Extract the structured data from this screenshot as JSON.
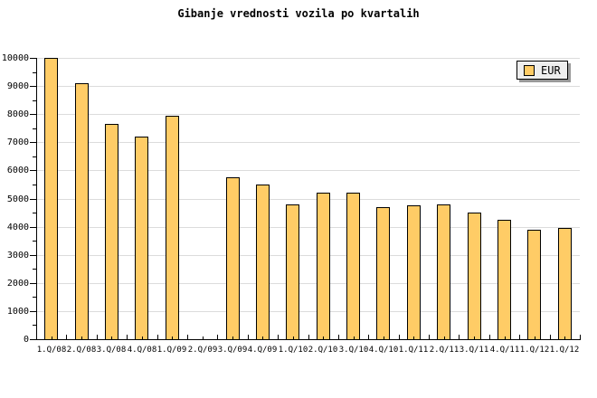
{
  "title": "Gibanje vrednosti vozila po kvartalih",
  "legend": {
    "label": "EUR"
  },
  "colors": {
    "background": "#FFFFFF",
    "bar_fill": "#FFCC66",
    "bar_border": "#000000",
    "grid": "#DCDCDC",
    "axis": "#000000",
    "text": "#000000",
    "legend_bg": "#EEEEEE",
    "legend_shadow": "#999999"
  },
  "chart_data": {
    "type": "bar",
    "title": "Gibanje vrednosti vozila po kvartalih",
    "xlabel": "",
    "ylabel": "",
    "categories": [
      "1.Q/08",
      "2.Q/08",
      "3.Q/08",
      "4.Q/08",
      "1.Q/09",
      "2.Q/09",
      "3.Q/09",
      "4.Q/09",
      "1.Q/10",
      "2.Q/10",
      "3.Q/10",
      "4.Q/10",
      "1.Q/11",
      "2.Q/11",
      "3.Q/11",
      "4.Q/11",
      "1.Q/12",
      "1.Q/12"
    ],
    "series": [
      {
        "name": "EUR",
        "values": [
          10000,
          9100,
          7650,
          7200,
          7950,
          null,
          5750,
          5500,
          4800,
          5200,
          5200,
          4700,
          4750,
          4800,
          4500,
          4250,
          3900,
          3950
        ]
      }
    ],
    "ylim": [
      0,
      10000
    ],
    "y_major_step": 1000,
    "y_minor_step": 500,
    "grid": "horizontal-major",
    "legend_position": "top-right"
  },
  "layout_note": "missing bar at 2.Q/09"
}
